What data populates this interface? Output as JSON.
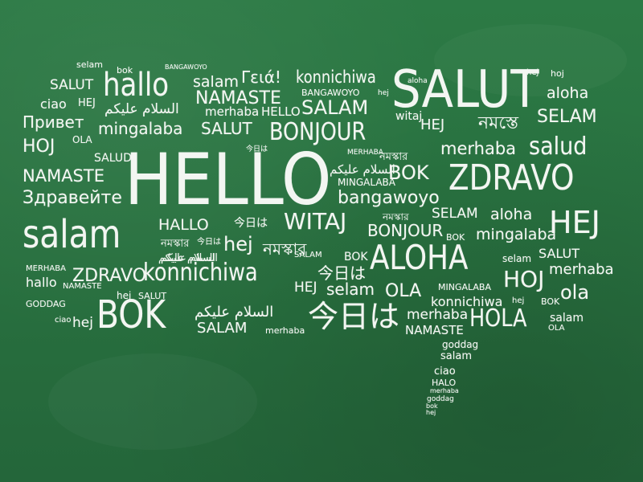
{
  "scene": {
    "background_color": "#28703f",
    "chalk_color": "#f3f6f2",
    "shape": "speech-bubble",
    "words": [
      "selam",
      "bok",
      "BANGAWOYO",
      "hej",
      "hoj",
      "SALUT",
      "hallo",
      "salam",
      "Γειά!",
      "konnichiwa",
      "aloha",
      "SALUT",
      "aloha",
      "ciao",
      "HEJ",
      "السلام عليكم",
      "merhaba",
      "HELLO",
      "NAMASTE",
      "BANGAWOYO",
      "hej",
      "SALAM",
      "Привет",
      "mingalaba",
      "SALUT",
      "BONJOUR",
      "witaj",
      "HEJ",
      "নমস্তে",
      "SELAM",
      "HOJ",
      "OLA",
      "SALUD",
      "今日は",
      "MERHABA",
      "নমস্কার",
      "merhaba",
      "salud",
      "NAMASTE",
      "HELLO",
      "السلام عليكم",
      "MINGALABA",
      "BOK",
      "ZDRAVO",
      "Здравейте",
      "bangawoyo",
      "salam",
      "HALLO",
      "今日は",
      "WITAJ",
      "নমস্কার",
      "SELAM",
      "aloha",
      "HEJ",
      "নমস্কার",
      "今日は",
      "BONJOUR",
      "السلام عليكم",
      "BOK",
      "mingalaba",
      "السلام عليكم",
      "hej",
      "নমস্কার",
      "ALOHA",
      "selam",
      "SALUT",
      "MERHABA",
      "ZDRAVO",
      "konnichiwa",
      "SALAM",
      "今日は",
      "BOK",
      "HOJ",
      "merhaba",
      "hallo",
      "NAMASTE",
      "HEJ",
      "selam",
      "OLA",
      "MINGALABA",
      "ola",
      "GODDAG",
      "hej",
      "SALUT",
      "konnichiwa",
      "hej",
      "BOK",
      "ciao",
      "hej",
      "BOK",
      "السلام عليكم",
      "今日は",
      "merhaba",
      "HOLA",
      "salam",
      "SALAM",
      "merhaba",
      "NAMASTE",
      "OLA",
      "goddag",
      "salam",
      "ciao",
      "HALO",
      "merhaba",
      "goddag",
      "bok",
      "hej"
    ]
  }
}
